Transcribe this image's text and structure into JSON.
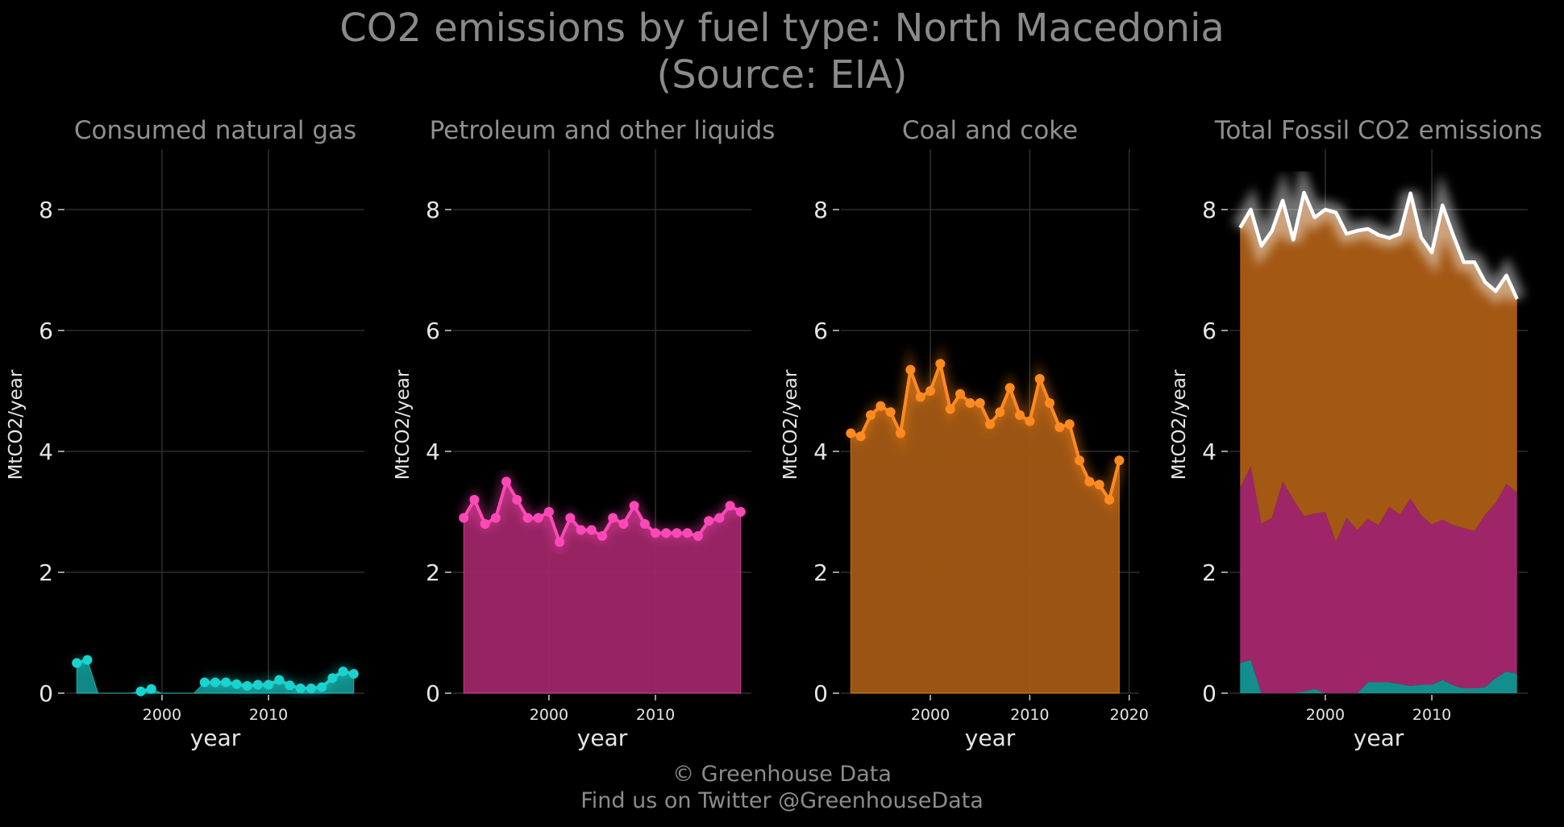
{
  "title": "CO2 emissions by fuel type: North Macedonia",
  "subtitle": "(Source: EIA)",
  "footer": {
    "line1": "© Greenhouse Data",
    "line2": "Find us on Twitter @GreenhouseData"
  },
  "chart_data": [
    {
      "type": "area",
      "title": "Consumed natural gas",
      "xlabel": "year",
      "ylabel": "MtCO2/year",
      "color": "#19d3cf",
      "fill": "#128f8c",
      "ylim": [
        0,
        9
      ],
      "xlim": [
        1991,
        2019
      ],
      "xticks": [
        2000,
        2010
      ],
      "yticks": [
        0,
        2,
        4,
        6,
        8
      ],
      "x": [
        1992,
        1993,
        1994,
        1995,
        1996,
        1997,
        1998,
        1999,
        2000,
        2001,
        2002,
        2003,
        2004,
        2005,
        2006,
        2007,
        2008,
        2009,
        2010,
        2011,
        2012,
        2013,
        2014,
        2015,
        2016,
        2017,
        2018
      ],
      "values": [
        0.5,
        0.55,
        0,
        0,
        0,
        0,
        0.03,
        0.07,
        0,
        0,
        0,
        0,
        0.18,
        0.18,
        0.18,
        0.15,
        0.12,
        0.14,
        0.14,
        0.22,
        0.13,
        0.08,
        0.08,
        0.1,
        0.25,
        0.36,
        0.32
      ],
      "markers_present": [
        true,
        true,
        false,
        false,
        false,
        false,
        true,
        true,
        false,
        false,
        false,
        false,
        true,
        true,
        true,
        true,
        true,
        true,
        true,
        true,
        true,
        true,
        true,
        true,
        true,
        true,
        true
      ]
    },
    {
      "type": "area",
      "title": "Petroleum and other liquids",
      "xlabel": "year",
      "ylabel": "MtCO2/year",
      "color": "#ff48b8",
      "fill": "#9e2668",
      "ylim": [
        0,
        9
      ],
      "xlim": [
        1991,
        2019
      ],
      "xticks": [
        2000,
        2010
      ],
      "yticks": [
        0,
        2,
        4,
        6,
        8
      ],
      "x": [
        1992,
        1993,
        1994,
        1995,
        1996,
        1997,
        1998,
        1999,
        2000,
        2001,
        2002,
        2003,
        2004,
        2005,
        2006,
        2007,
        2008,
        2009,
        2010,
        2011,
        2012,
        2013,
        2014,
        2015,
        2016,
        2017,
        2018
      ],
      "values": [
        2.9,
        3.2,
        2.8,
        2.9,
        3.5,
        3.2,
        2.9,
        2.9,
        3.0,
        2.5,
        2.9,
        2.7,
        2.7,
        2.6,
        2.9,
        2.8,
        3.1,
        2.8,
        2.65,
        2.65,
        2.65,
        2.65,
        2.6,
        2.85,
        2.9,
        3.1,
        3.0
      ]
    },
    {
      "type": "area",
      "title": "Coal and coke",
      "xlabel": "year",
      "ylabel": "MtCO2/year",
      "color": "#ff8a1f",
      "fill": "#a35814",
      "ylim": [
        0,
        9
      ],
      "xlim": [
        1991,
        2021
      ],
      "xticks": [
        2000,
        2010,
        2020
      ],
      "yticks": [
        0,
        2,
        4,
        6,
        8
      ],
      "x": [
        1992,
        1993,
        1994,
        1995,
        1996,
        1997,
        1998,
        1999,
        2000,
        2001,
        2002,
        2003,
        2004,
        2005,
        2006,
        2007,
        2008,
        2009,
        2010,
        2011,
        2012,
        2013,
        2014,
        2015,
        2016,
        2017,
        2018,
        2019
      ],
      "values": [
        4.3,
        4.25,
        4.6,
        4.75,
        4.65,
        4.3,
        5.35,
        4.9,
        5.0,
        5.45,
        4.7,
        4.95,
        4.8,
        4.8,
        4.45,
        4.65,
        5.05,
        4.6,
        4.5,
        5.2,
        4.8,
        4.4,
        4.45,
        3.85,
        3.5,
        3.45,
        3.2,
        3.85
      ]
    },
    {
      "type": "area",
      "title": "Total Fossil CO2 emissions",
      "xlabel": "year",
      "ylabel": "MtCO2/year",
      "stacked": true,
      "ylim": [
        0,
        9
      ],
      "xlim": [
        1991,
        2019
      ],
      "xticks": [
        2000,
        2010
      ],
      "yticks": [
        0,
        2,
        4,
        6,
        8
      ],
      "x": [
        1992,
        1993,
        1994,
        1995,
        1996,
        1997,
        1998,
        1999,
        2000,
        2001,
        2002,
        2003,
        2004,
        2005,
        2006,
        2007,
        2008,
        2009,
        2010,
        2011,
        2012,
        2013,
        2014,
        2015,
        2016,
        2017,
        2018
      ],
      "series": [
        {
          "values": [
            0.5,
            0.55,
            0,
            0,
            0,
            0,
            0.03,
            0.07,
            0,
            0,
            0,
            0,
            0.18,
            0.18,
            0.18,
            0.15,
            0.12,
            0.14,
            0.14,
            0.22,
            0.13,
            0.08,
            0.08,
            0.1,
            0.25,
            0.36,
            0.32
          ],
          "fill": "#128f8c"
        },
        {
          "values": [
            2.9,
            3.2,
            2.8,
            2.9,
            3.5,
            3.2,
            2.9,
            2.9,
            3.0,
            2.5,
            2.9,
            2.7,
            2.7,
            2.6,
            2.9,
            2.8,
            3.1,
            2.8,
            2.65,
            2.65,
            2.65,
            2.65,
            2.6,
            2.85,
            2.9,
            3.1,
            3.0
          ],
          "fill": "#9e2668"
        },
        {
          "values": [
            4.3,
            4.25,
            4.6,
            4.75,
            4.65,
            4.3,
            5.35,
            4.9,
            5.0,
            5.45,
            4.7,
            4.95,
            4.8,
            4.8,
            4.45,
            4.65,
            5.05,
            4.6,
            4.5,
            5.2,
            4.8,
            4.4,
            4.45,
            3.85,
            3.5,
            3.45,
            3.2
          ],
          "fill": "#a35814"
        }
      ],
      "total": [
        7.7,
        8.0,
        7.4,
        7.65,
        8.15,
        7.5,
        8.28,
        7.87,
        8.0,
        7.95,
        7.6,
        7.65,
        7.68,
        7.58,
        7.53,
        7.6,
        8.27,
        7.54,
        7.29,
        8.07,
        7.58,
        7.13,
        7.13,
        6.8,
        6.65,
        6.91,
        6.52
      ],
      "total_color": "#ffffff"
    }
  ]
}
